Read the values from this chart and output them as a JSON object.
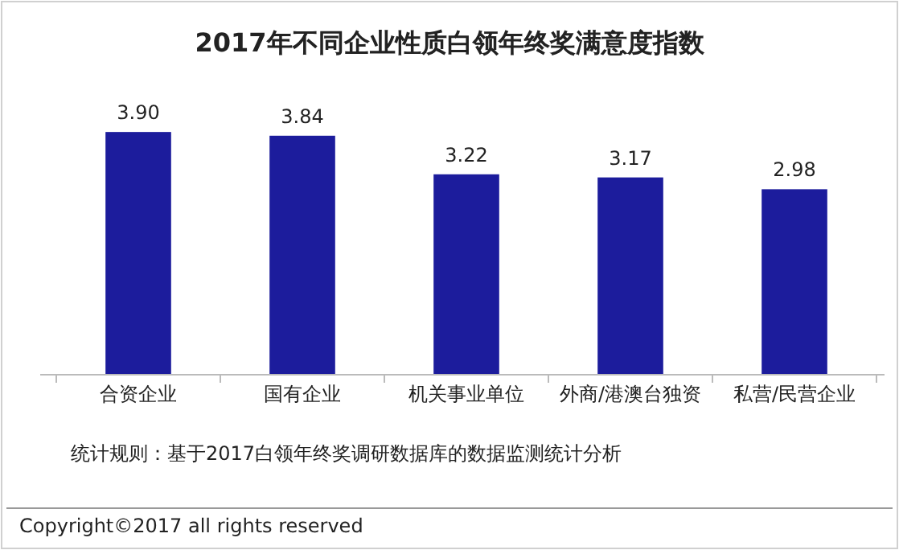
{
  "chart_data": {
    "type": "bar",
    "title": "2017年不同企业性质白领年终奖满意度指数",
    "categories": [
      "合资企业",
      "国有企业",
      "机关事业单位",
      "外商/港澳台独资",
      "私营/民营企业"
    ],
    "values": [
      3.9,
      3.84,
      3.22,
      3.17,
      2.98
    ],
    "value_labels": [
      "3.90",
      "3.84",
      "3.22",
      "3.17",
      "2.98"
    ],
    "color": "#1c1c9c",
    "annotations": [
      "统计规则：基于2017白领年终奖调研数据库的数据监测统计分析",
      "Copyright©2017 all rights reserved"
    ]
  }
}
